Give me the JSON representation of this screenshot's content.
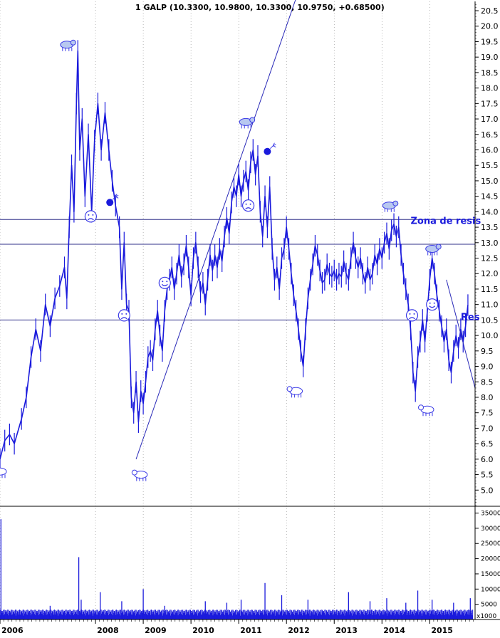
{
  "chart_data": [
    {
      "type": "line",
      "title": "1 GALP (10.3300, 10.9800, 10.3300, 10.9750, +0.68500)",
      "xlabel": "",
      "ylabel": "",
      "x_tick_labels": [
        "2006",
        "2008",
        "2009",
        "2010",
        "2011",
        "2012",
        "2013",
        "2014",
        "2015"
      ],
      "x_tick_positions": [
        2006.0,
        2008.0,
        2009.0,
        2010.0,
        2011.0,
        2012.0,
        2013.0,
        2014.0,
        2015.0
      ],
      "xlim": [
        2006.0,
        2015.95
      ],
      "ylim": [
        4.5,
        20.8
      ],
      "y_ticks": [
        5.0,
        5.5,
        6.0,
        6.5,
        7.0,
        7.5,
        8.0,
        8.5,
        9.0,
        9.5,
        10.0,
        10.5,
        11.0,
        11.5,
        12.0,
        12.5,
        13.0,
        13.5,
        14.0,
        14.5,
        15.0,
        15.5,
        16.0,
        16.5,
        17.0,
        17.5,
        18.0,
        18.5,
        19.0,
        19.5,
        20.0,
        20.5
      ],
      "y_axis_side": "right",
      "grid": "vertical dotted",
      "series": [
        {
          "values": [
            [
              2006.0,
              6.0
            ],
            [
              2006.1,
              6.6
            ],
            [
              2006.2,
              6.8
            ],
            [
              2006.3,
              6.5
            ],
            [
              2006.45,
              7.3
            ],
            [
              2006.55,
              8.0
            ],
            [
              2006.65,
              9.3
            ],
            [
              2006.75,
              10.2
            ],
            [
              2006.85,
              9.5
            ],
            [
              2006.95,
              11.0
            ],
            [
              2007.05,
              10.3
            ],
            [
              2007.15,
              11.2
            ],
            [
              2007.25,
              11.6
            ],
            [
              2007.35,
              12.2
            ],
            [
              2007.4,
              11.2
            ],
            [
              2007.45,
              13.5
            ],
            [
              2007.5,
              15.5
            ],
            [
              2007.55,
              14.0
            ],
            [
              2007.6,
              17.5
            ],
            [
              2007.63,
              19.2
            ],
            [
              2007.67,
              16.0
            ],
            [
              2007.72,
              17.0
            ],
            [
              2007.78,
              14.5
            ],
            [
              2007.85,
              16.5
            ],
            [
              2007.92,
              14.0
            ],
            [
              2007.98,
              16.3
            ],
            [
              2008.05,
              17.5
            ],
            [
              2008.12,
              16.0
            ],
            [
              2008.2,
              17.2
            ],
            [
              2008.28,
              16.0
            ],
            [
              2008.35,
              15.0
            ],
            [
              2008.42,
              14.2
            ],
            [
              2008.5,
              13.5
            ],
            [
              2008.55,
              11.5
            ],
            [
              2008.6,
              13.0
            ],
            [
              2008.65,
              11.0
            ],
            [
              2008.7,
              10.8
            ],
            [
              2008.75,
              8.0
            ],
            [
              2008.8,
              7.5
            ],
            [
              2008.85,
              8.5
            ],
            [
              2008.9,
              7.2
            ],
            [
              2008.95,
              8.2
            ],
            [
              2009.0,
              7.8
            ],
            [
              2009.05,
              8.5
            ],
            [
              2009.1,
              9.3
            ],
            [
              2009.15,
              9.5
            ],
            [
              2009.2,
              9.2
            ],
            [
              2009.25,
              10.2
            ],
            [
              2009.3,
              10.8
            ],
            [
              2009.35,
              10.0
            ],
            [
              2009.4,
              9.5
            ],
            [
              2009.45,
              10.8
            ],
            [
              2009.5,
              11.5
            ],
            [
              2009.55,
              11.8
            ],
            [
              2009.6,
              12.2
            ],
            [
              2009.65,
              11.5
            ],
            [
              2009.7,
              12.0
            ],
            [
              2009.75,
              12.6
            ],
            [
              2009.8,
              11.9
            ],
            [
              2009.85,
              12.3
            ],
            [
              2009.9,
              12.9
            ],
            [
              2009.95,
              12.2
            ],
            [
              2010.0,
              11.3
            ],
            [
              2010.05,
              12.5
            ],
            [
              2010.1,
              13.0
            ],
            [
              2010.15,
              12.2
            ],
            [
              2010.2,
              11.4
            ],
            [
              2010.25,
              11.7
            ],
            [
              2010.3,
              11.0
            ],
            [
              2010.35,
              11.8
            ],
            [
              2010.4,
              12.6
            ],
            [
              2010.45,
              12.1
            ],
            [
              2010.5,
              12.6
            ],
            [
              2010.55,
              12.2
            ],
            [
              2010.6,
              12.8
            ],
            [
              2010.65,
              12.4
            ],
            [
              2010.7,
              13.2
            ],
            [
              2010.75,
              13.8
            ],
            [
              2010.8,
              13.3
            ],
            [
              2010.85,
              14.3
            ],
            [
              2010.9,
              14.8
            ],
            [
              2010.95,
              14.5
            ],
            [
              2011.0,
              15.2
            ],
            [
              2011.05,
              14.5
            ],
            [
              2011.1,
              15.0
            ],
            [
              2011.15,
              15.3
            ],
            [
              2011.2,
              14.7
            ],
            [
              2011.25,
              15.6
            ],
            [
              2011.3,
              16.0
            ],
            [
              2011.35,
              15.2
            ],
            [
              2011.4,
              15.8
            ],
            [
              2011.45,
              14.0
            ],
            [
              2011.5,
              13.2
            ],
            [
              2011.55,
              14.5
            ],
            [
              2011.6,
              13.5
            ],
            [
              2011.65,
              14.8
            ],
            [
              2011.7,
              12.8
            ],
            [
              2011.75,
              11.8
            ],
            [
              2011.8,
              12.2
            ],
            [
              2011.85,
              11.5
            ],
            [
              2011.9,
              12.5
            ],
            [
              2011.95,
              12.8
            ],
            [
              2012.0,
              13.5
            ],
            [
              2012.05,
              12.8
            ],
            [
              2012.1,
              12.0
            ],
            [
              2012.15,
              11.3
            ],
            [
              2012.2,
              10.8
            ],
            [
              2012.25,
              10.2
            ],
            [
              2012.3,
              9.5
            ],
            [
              2012.35,
              9.0
            ],
            [
              2012.4,
              10.2
            ],
            [
              2012.45,
              11.2
            ],
            [
              2012.5,
              11.8
            ],
            [
              2012.55,
              12.3
            ],
            [
              2012.6,
              12.9
            ],
            [
              2012.65,
              12.6
            ],
            [
              2012.7,
              12.1
            ],
            [
              2012.75,
              11.7
            ],
            [
              2012.8,
              11.8
            ],
            [
              2012.85,
              12.3
            ],
            [
              2012.9,
              12.0
            ],
            [
              2012.95,
              11.9
            ],
            [
              2013.0,
              12.1
            ],
            [
              2013.05,
              11.8
            ],
            [
              2013.1,
              12.0
            ],
            [
              2013.15,
              11.9
            ],
            [
              2013.2,
              12.4
            ],
            [
              2013.25,
              12.0
            ],
            [
              2013.3,
              11.8
            ],
            [
              2013.35,
              12.5
            ],
            [
              2013.4,
              13.0
            ],
            [
              2013.45,
              12.5
            ],
            [
              2013.5,
              12.2
            ],
            [
              2013.55,
              12.5
            ],
            [
              2013.6,
              12.0
            ],
            [
              2013.65,
              11.7
            ],
            [
              2013.7,
              12.2
            ],
            [
              2013.75,
              11.8
            ],
            [
              2013.8,
              12.0
            ],
            [
              2013.85,
              12.6
            ],
            [
              2013.9,
              12.3
            ],
            [
              2013.95,
              12.8
            ],
            [
              2014.0,
              12.5
            ],
            [
              2014.05,
              13.0
            ],
            [
              2014.1,
              13.3
            ],
            [
              2014.15,
              12.8
            ],
            [
              2014.2,
              13.4
            ],
            [
              2014.25,
              13.6
            ],
            [
              2014.3,
              13.2
            ],
            [
              2014.35,
              13.5
            ],
            [
              2014.4,
              12.6
            ],
            [
              2014.45,
              12.0
            ],
            [
              2014.5,
              11.5
            ],
            [
              2014.55,
              11.0
            ],
            [
              2014.6,
              10.2
            ],
            [
              2014.65,
              8.8
            ],
            [
              2014.7,
              8.2
            ],
            [
              2014.75,
              9.3
            ],
            [
              2014.8,
              9.8
            ],
            [
              2014.85,
              10.5
            ],
            [
              2014.9,
              9.8
            ],
            [
              2014.95,
              10.8
            ],
            [
              2015.0,
              11.8
            ],
            [
              2015.05,
              12.5
            ],
            [
              2015.1,
              12.0
            ],
            [
              2015.15,
              11.3
            ],
            [
              2015.2,
              10.8
            ],
            [
              2015.25,
              10.3
            ],
            [
              2015.3,
              9.8
            ],
            [
              2015.35,
              10.2
            ],
            [
              2015.4,
              9.2
            ],
            [
              2015.45,
              8.8
            ],
            [
              2015.5,
              9.5
            ],
            [
              2015.55,
              10.0
            ],
            [
              2015.6,
              9.6
            ],
            [
              2015.65,
              10.2
            ],
            [
              2015.7,
              9.8
            ],
            [
              2015.75,
              10.3
            ],
            [
              2015.8,
              10.98
            ]
          ]
        }
      ],
      "horizontal_lines": [
        13.75,
        12.95,
        10.5
      ],
      "trendlines": [
        {
          "from": [
            2008.85,
            6.0
          ],
          "to": [
            2012.2,
            20.9
          ]
        },
        {
          "from": [
            2015.35,
            11.8
          ],
          "to": [
            2015.95,
            8.3
          ]
        }
      ],
      "annotations": [
        {
          "text": "Zona de resis",
          "x": 2014.6,
          "y": 13.6,
          "color": "#1a1adc"
        },
        {
          "text": "Res",
          "x": 2015.65,
          "y": 10.5,
          "color": "#1a1adc"
        }
      ],
      "markers": [
        {
          "kind": "bear",
          "x": 2007.4,
          "y": 19.4
        },
        {
          "kind": "bear",
          "x": 2011.15,
          "y": 16.9
        },
        {
          "kind": "bear",
          "x": 2014.15,
          "y": 14.2
        },
        {
          "kind": "bear",
          "x": 2015.05,
          "y": 12.8
        },
        {
          "kind": "bull",
          "x": 2006.0,
          "y": 5.6
        },
        {
          "kind": "bull",
          "x": 2008.95,
          "y": 5.5
        },
        {
          "kind": "bull",
          "x": 2012.2,
          "y": 8.2
        },
        {
          "kind": "bull",
          "x": 2014.95,
          "y": 7.6
        },
        {
          "kind": "smile",
          "x": 2009.45,
          "y": 11.7
        },
        {
          "kind": "smile",
          "x": 2015.05,
          "y": 11.0
        },
        {
          "kind": "sad",
          "x": 2007.9,
          "y": 13.85
        },
        {
          "kind": "sad",
          "x": 2008.6,
          "y": 10.65
        },
        {
          "kind": "sad",
          "x": 2011.2,
          "y": 14.2
        },
        {
          "kind": "sad",
          "x": 2014.63,
          "y": 10.65
        },
        {
          "kind": "bomb",
          "x": 2008.3,
          "y": 14.3
        },
        {
          "kind": "bomb",
          "x": 2011.6,
          "y": 15.95
        }
      ]
    },
    {
      "type": "bar",
      "title": "",
      "ylim": [
        0,
        37000
      ],
      "y_ticks": [
        5000,
        10000,
        15000,
        20000,
        25000,
        30000,
        35000
      ],
      "y_tick_labels": [
        "5000",
        "10000",
        "15000",
        "20000",
        "25000",
        "30000",
        "35000"
      ],
      "unit_label": "x1000",
      "spikes": [
        [
          2006.02,
          33000
        ],
        [
          2007.05,
          4500
        ],
        [
          2007.65,
          20500
        ],
        [
          2007.7,
          6500
        ],
        [
          2008.1,
          9000
        ],
        [
          2008.55,
          6000
        ],
        [
          2009.0,
          10000
        ],
        [
          2009.45,
          4500
        ],
        [
          2010.3,
          6000
        ],
        [
          2010.75,
          5500
        ],
        [
          2011.05,
          6500
        ],
        [
          2011.55,
          12000
        ],
        [
          2011.9,
          8000
        ],
        [
          2012.45,
          6500
        ],
        [
          2013.3,
          9000
        ],
        [
          2013.75,
          6000
        ],
        [
          2014.1,
          7000
        ],
        [
          2014.5,
          5500
        ],
        [
          2014.75,
          9500
        ],
        [
          2015.05,
          6500
        ],
        [
          2015.5,
          5500
        ],
        [
          2015.85,
          7000
        ]
      ],
      "baseline_level": 2500
    }
  ],
  "colors": {
    "price_line": "#1a1adc",
    "marker": "#3a3ae6",
    "axis": "#000000",
    "horizontal_line": "#30308a",
    "grid": "#888888"
  }
}
